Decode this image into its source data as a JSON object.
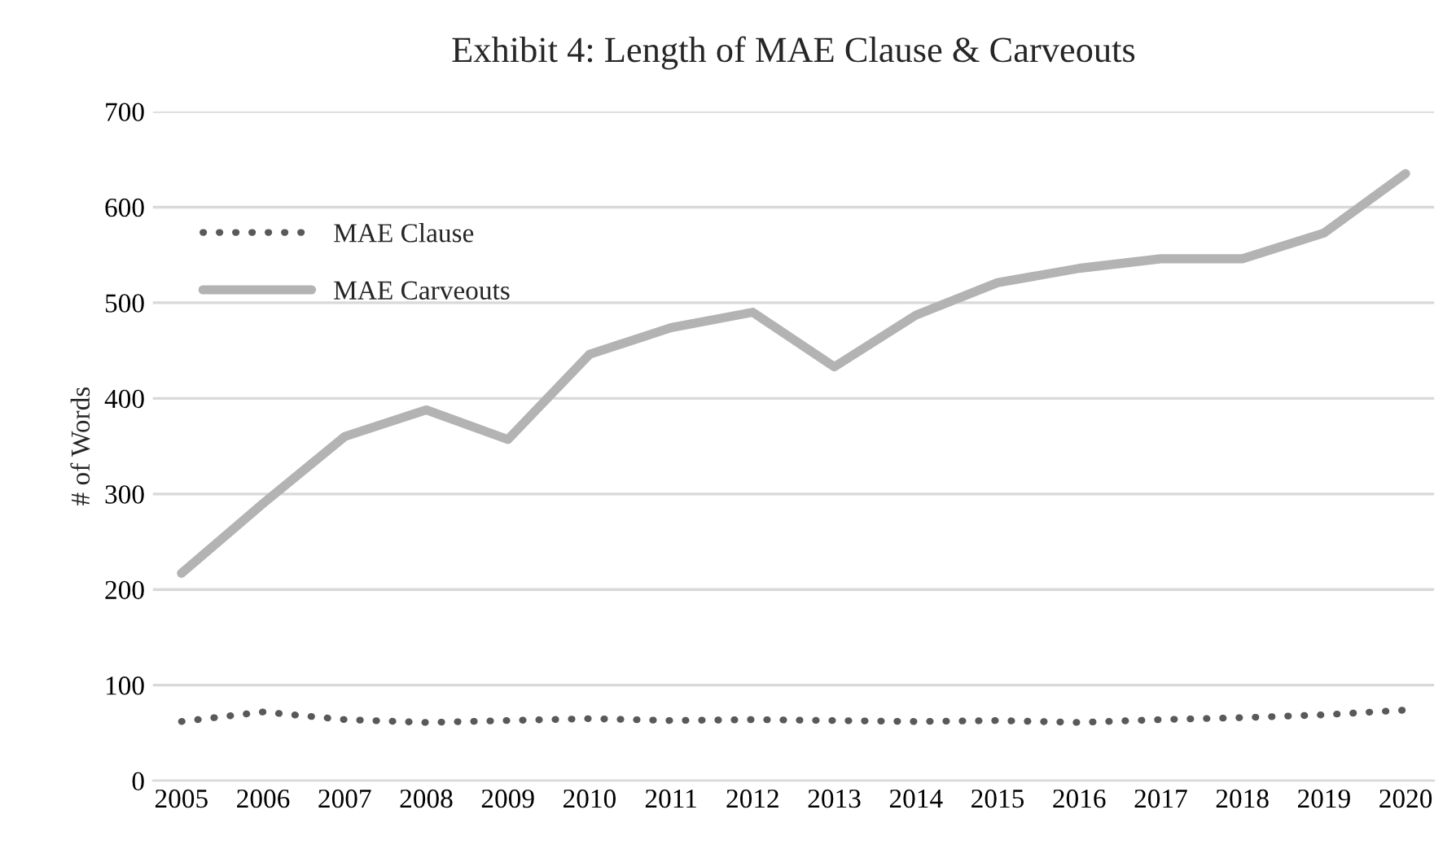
{
  "chart_data": {
    "type": "line",
    "title": "Exhibit 4: Length of MAE Clause & Carveouts",
    "ylabel": "# of Words",
    "categories": [
      "2005",
      "2006",
      "2007",
      "2008",
      "2009",
      "2010",
      "2011",
      "2012",
      "2013",
      "2014",
      "2015",
      "2016",
      "2017",
      "2018",
      "2019",
      "2020"
    ],
    "series": [
      {
        "name": "MAE Clause",
        "color": "#595959",
        "line_style": "dotted",
        "values": [
          62,
          72,
          64,
          61,
          63,
          65,
          63,
          64,
          63,
          62,
          63,
          61,
          64,
          66,
          69,
          74
        ]
      },
      {
        "name": "MAE Carveouts",
        "color": "#b3b3b3",
        "line_style": "solid",
        "values": [
          217,
          290,
          360,
          388,
          357,
          446,
          474,
          490,
          433,
          487,
          521,
          536,
          546,
          546,
          573,
          635
        ]
      }
    ],
    "ylim": [
      0,
      700
    ],
    "yticks": [
      0,
      100,
      200,
      300,
      400,
      500,
      600,
      700
    ],
    "grid": "y",
    "legend": "top left",
    "marker": "none"
  }
}
